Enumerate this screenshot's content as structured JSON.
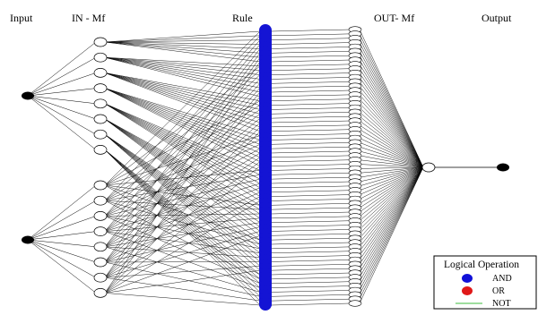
{
  "headers": {
    "input": "Input",
    "in_mf": "IN - Mf",
    "rule": "Rule",
    "out_mf": "OUT- Mf",
    "output": "Output"
  },
  "network": {
    "inputs": 2,
    "in_mf_per_input": 8,
    "rules": 64,
    "out_mf": 64,
    "outputs": 1
  },
  "legend": {
    "title": "Logical Operation",
    "items": [
      {
        "label": "AND",
        "color": "#1010d8",
        "marker": "dot"
      },
      {
        "label": "OR",
        "color": "#e01818",
        "marker": "dot"
      },
      {
        "label": "NOT",
        "color": "#7fd37f",
        "marker": "line"
      }
    ]
  },
  "colors": {
    "rule_bar": "#1414d4",
    "input_node": "#000000",
    "mf_node_fill": "#ffffff",
    "edge": "#000000"
  }
}
